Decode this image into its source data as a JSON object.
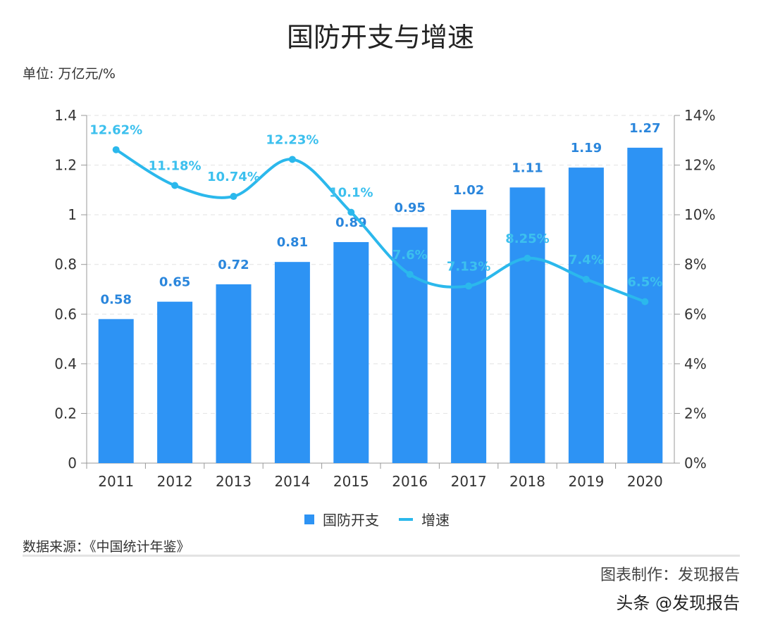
{
  "chart_data": {
    "type": "bar+line",
    "title": "国防开支与增速",
    "unit_label": "单位: 万亿元/%",
    "categories": [
      "2011",
      "2012",
      "2013",
      "2014",
      "2015",
      "2016",
      "2017",
      "2018",
      "2019",
      "2020"
    ],
    "series": [
      {
        "name": "国防开支",
        "type": "bar",
        "axis": "left",
        "color": "#2d93f4",
        "values": [
          0.58,
          0.65,
          0.72,
          0.81,
          0.89,
          0.95,
          1.02,
          1.11,
          1.19,
          1.27
        ],
        "labels": [
          "0.58",
          "0.65",
          "0.72",
          "0.81",
          "0.89",
          "0.95",
          "1.02",
          "1.11",
          "1.19",
          "1.27"
        ]
      },
      {
        "name": "增速",
        "type": "line",
        "axis": "right",
        "color": "#2bb8ec",
        "values": [
          12.62,
          11.18,
          10.74,
          12.23,
          10.1,
          7.6,
          7.13,
          8.25,
          7.4,
          6.5
        ],
        "labels": [
          "12.62%",
          "11.18%",
          "10.74%",
          "12.23%",
          "10.1%",
          "7.6%",
          "7.13%",
          "8.25%",
          "7.4%",
          "6.5%"
        ]
      }
    ],
    "y_left": {
      "range": [
        0,
        1.4
      ],
      "ticks": [
        "0",
        "0.2",
        "0.4",
        "0.6",
        "0.8",
        "1",
        "1.2",
        "1.4"
      ]
    },
    "y_right": {
      "range": [
        0,
        14
      ],
      "ticks": [
        "0%",
        "2%",
        "4%",
        "6%",
        "8%",
        "10%",
        "12%",
        "14%"
      ]
    },
    "grid": "horizontal-dashed",
    "legend": "bottom-center",
    "source": "数据来源：《中国统计年鉴》"
  },
  "watermark": {
    "chart_credit": "图表制作：发现报告",
    "platform": "头条 @发现报告"
  }
}
